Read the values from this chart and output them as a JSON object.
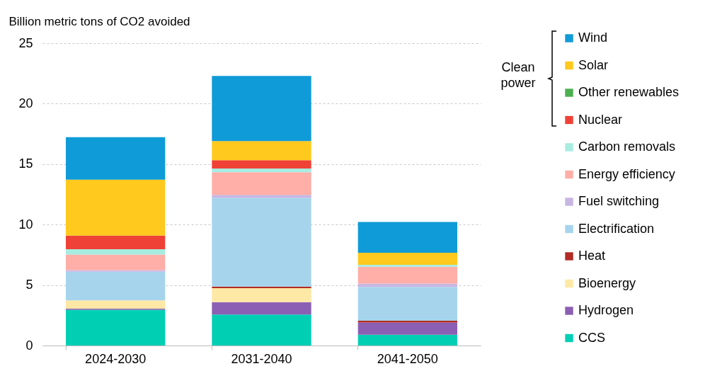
{
  "chart_data": {
    "type": "bar",
    "stacked": true,
    "ylabel": "Billion metric tons of CO2 avoided",
    "categories": [
      "2024-2030",
      "2031-2040",
      "2041-2050"
    ],
    "ylim": [
      0,
      25
    ],
    "yticks": [
      0,
      5,
      10,
      15,
      20,
      25
    ],
    "grid": "y",
    "legend": "right",
    "annotations": [
      "Clean power"
    ],
    "series": [
      {
        "name": "CCS",
        "color": "#00cfb4",
        "values": [
          2.95,
          2.56,
          0.9
        ]
      },
      {
        "name": "Hydrogen",
        "color": "#8b5fb3",
        "values": [
          0.1,
          1.03,
          1.01
        ]
      },
      {
        "name": "Bioenergy",
        "color": "#fee8a6",
        "values": [
          0.68,
          1.15,
          0
        ]
      },
      {
        "name": "Heat",
        "color": "#b22b24",
        "values": [
          null,
          0.14,
          0.14
        ]
      },
      {
        "name": "Electrification",
        "color": "#a6d4ed",
        "values": [
          2.38,
          7.34,
          2.79
        ]
      },
      {
        "name": "Fuel switching",
        "color": "#c8b6e2",
        "values": [
          0.12,
          0.23,
          0.29
        ]
      },
      {
        "name": "Energy efficiency",
        "color": "#ffaea8",
        "values": [
          1.3,
          1.88,
          1.39
        ]
      },
      {
        "name": "Carbon removals",
        "color": "#a8ece0",
        "values": [
          0.43,
          0.31,
          0.15
        ]
      },
      {
        "name": "Nuclear",
        "color": "#ef4136",
        "values": [
          1.13,
          0.68,
          0
        ]
      },
      {
        "name": "Other renewables",
        "color": "#4caf50",
        "values": [
          0,
          0,
          0
        ]
      },
      {
        "name": "Solar",
        "color": "#ffc91d",
        "values": [
          4.63,
          1.58,
          1.0
        ]
      },
      {
        "name": "Wind",
        "color": "#0f9bd7",
        "values": [
          3.51,
          5.39,
          2.55
        ]
      }
    ]
  }
}
